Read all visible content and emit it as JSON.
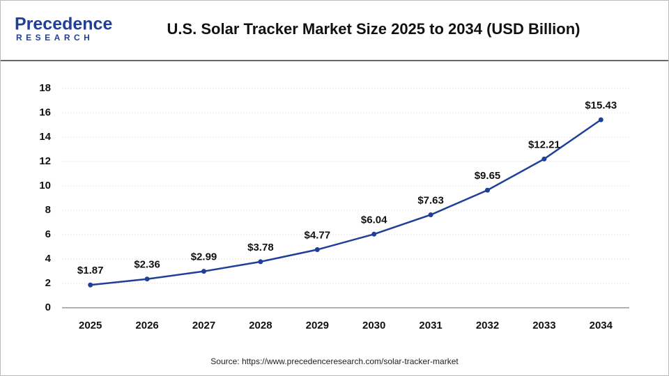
{
  "logo": {
    "name": "Precedence",
    "tagline": "RESEARCH"
  },
  "source": "Source: https://www.precedenceresearch.com/solar-tracker-market",
  "chart_data": {
    "type": "line",
    "title": "U.S. Solar Tracker Market Size 2025 to 2034 (USD Billion)",
    "categories": [
      "2025",
      "2026",
      "2027",
      "2028",
      "2029",
      "2030",
      "2031",
      "2032",
      "2033",
      "2034"
    ],
    "series": [
      {
        "name": "U.S. Solar Tracker Market Size",
        "color": "#1f3f99",
        "values": [
          1.87,
          2.36,
          2.99,
          3.78,
          4.77,
          6.04,
          7.63,
          9.65,
          12.21,
          15.43
        ],
        "value_labels": [
          "$1.87",
          "$2.36",
          "$2.99",
          "$3.78",
          "$4.77",
          "$6.04",
          "$7.63",
          "$9.65",
          "$12.21",
          "$15.43"
        ]
      }
    ],
    "ylim": [
      0,
      18
    ],
    "yticks": [
      0,
      2,
      4,
      6,
      8,
      10,
      12,
      14,
      16,
      18
    ],
    "grid": true
  }
}
